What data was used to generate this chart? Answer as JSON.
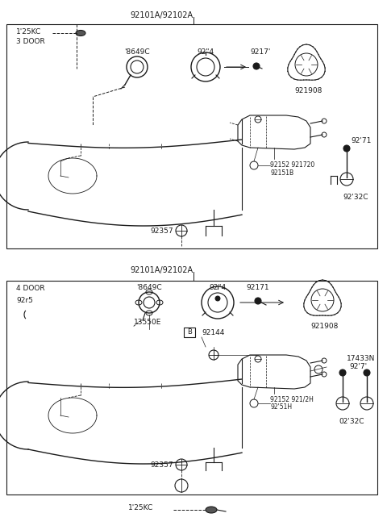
{
  "bg_color": "#ffffff",
  "line_color": "#1a1a1a",
  "fig_width": 4.8,
  "fig_height": 6.57,
  "dpi": 100,
  "top_header": "92101A/92102A",
  "bot_header": "92101A/92102A",
  "top_label": "3 DOOR",
  "bot_label": "4 DOOR",
  "top_parts_labels": {
    "pt25kc": "1'25KC",
    "p8649c": "'8649C",
    "p924": "92\"4",
    "p9217": "9217'",
    "p921908": "921908",
    "p92152": "92152 921720",
    "p92151": "92151B",
    "p9271": "92'71",
    "p9232c": "92'32C",
    "p92357": "92357"
  },
  "bot_parts_labels": {
    "pt25kc": "1'25KC",
    "p92r5": "92r5",
    "p8649c": "'8649C",
    "p924": "92\"4",
    "p92171": "92171",
    "p921908": "921908",
    "p13550e": "13550E",
    "p92144": "92144",
    "p92152": "92152 921/2H",
    "p9251h": "92'51H",
    "p17433n": "17433N",
    "p927": "92'7'",
    "p9232c": "02'32C",
    "p92357": "92357"
  }
}
